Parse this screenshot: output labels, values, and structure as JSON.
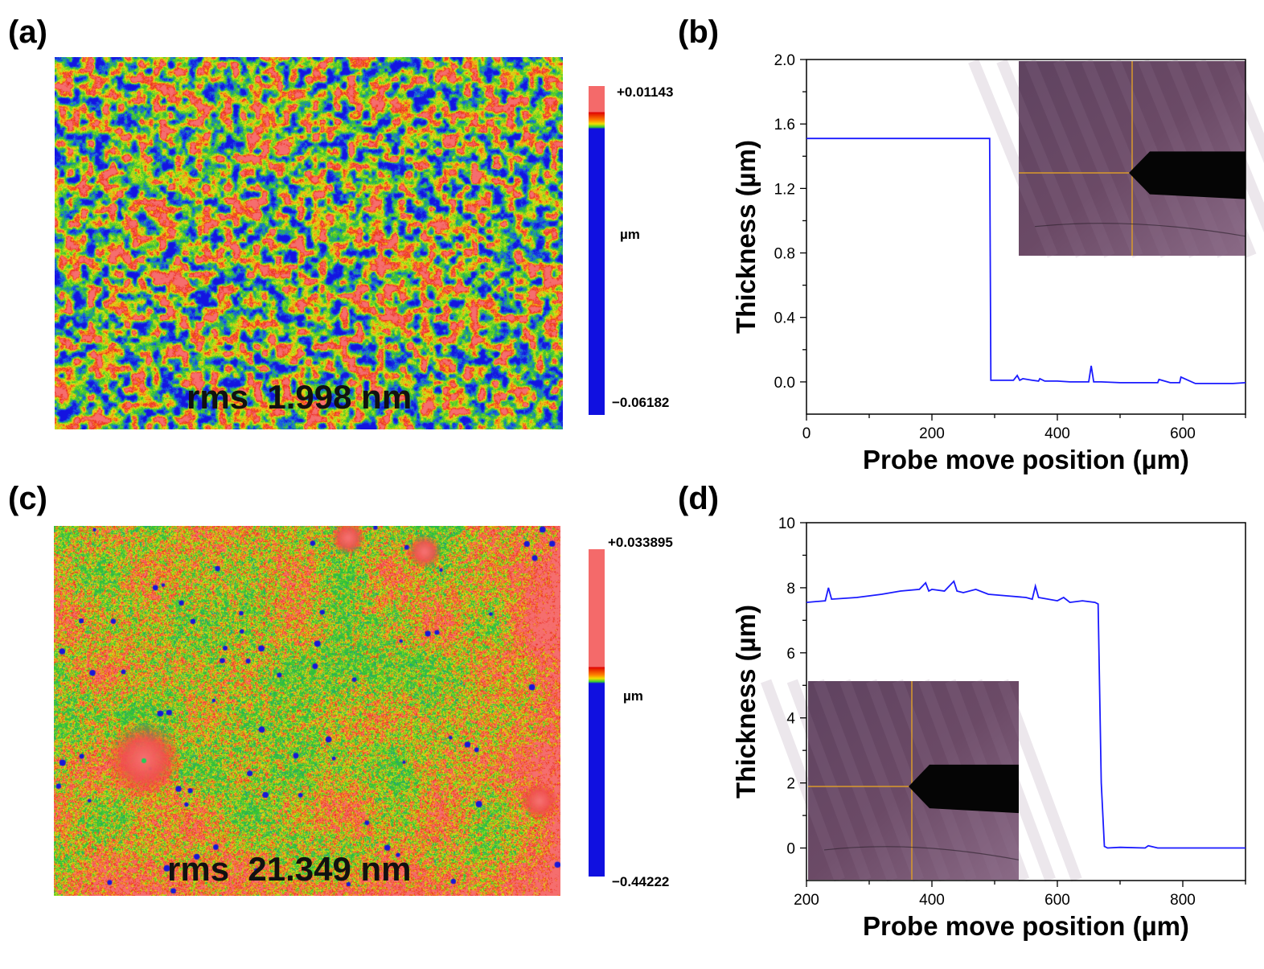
{
  "panels": {
    "a": {
      "label": "(a)",
      "rms": "rms  1.998 nm",
      "colorbar": {
        "max": "+0.01143",
        "unit": "µm",
        "min": "−0.06182"
      },
      "style": "dense-speckle"
    },
    "b": {
      "label": "(b)"
    },
    "c": {
      "label": "(c)",
      "rms": "rms  21.349 nm",
      "colorbar": {
        "max": "+0.033895",
        "unit": "µm",
        "min": "−0.44222"
      },
      "style": "sparse-pits"
    },
    "d": {
      "label": "(d)"
    }
  },
  "colors": {
    "line": "#1a1aff",
    "cb_red": "#f46a6a",
    "cb_blue": "#1010e0",
    "inset": "#6b4a66"
  },
  "chart_data": [
    {
      "id": "b",
      "type": "line",
      "xlabel": "Probe move position (µm)",
      "ylabel": "Thickness (µm)",
      "xlim": [
        0,
        700
      ],
      "ylim": [
        -0.2,
        2.0
      ],
      "xticks": [
        "0",
        "200",
        "400",
        "600"
      ],
      "yticks": [
        "0.0",
        "0.4",
        "0.8",
        "1.2",
        "1.6",
        "2.0"
      ],
      "inset": "top-right",
      "series": [
        {
          "x": [
            0,
            150,
            290,
            292,
            294,
            300,
            330,
            336,
            340,
            345,
            360,
            370,
            372,
            380,
            400,
            420,
            450,
            454,
            458,
            470,
            500,
            540,
            560,
            562,
            580,
            595,
            597,
            620,
            650,
            680,
            700
          ],
          "y": [
            1.51,
            1.51,
            1.51,
            1.51,
            0.01,
            0.01,
            0.01,
            0.04,
            0.01,
            0.02,
            0.01,
            0.005,
            0.02,
            0.005,
            0.005,
            0.0,
            0.0,
            0.1,
            0.0,
            0.0,
            -0.005,
            -0.005,
            -0.005,
            0.015,
            -0.005,
            -0.005,
            0.03,
            -0.01,
            -0.01,
            -0.01,
            -0.005
          ]
        }
      ]
    },
    {
      "id": "d",
      "type": "line",
      "xlabel": "Probe move position (µm)",
      "ylabel": "Thickness (µm)",
      "xlim": [
        200,
        900
      ],
      "ylim": [
        -1,
        10
      ],
      "xticks": [
        "200",
        "400",
        "600",
        "800"
      ],
      "yticks": [
        "0",
        "2",
        "4",
        "6",
        "8",
        "10"
      ],
      "inset": "bottom-left",
      "series": [
        {
          "x": [
            200,
            230,
            235,
            240,
            280,
            300,
            320,
            350,
            380,
            390,
            395,
            400,
            420,
            435,
            440,
            450,
            470,
            490,
            520,
            550,
            560,
            565,
            570,
            600,
            610,
            620,
            640,
            660,
            665,
            670,
            675,
            680,
            700,
            740,
            745,
            760,
            800,
            850,
            900
          ],
          "y": [
            7.55,
            7.6,
            8.0,
            7.65,
            7.7,
            7.75,
            7.8,
            7.9,
            7.95,
            8.15,
            7.9,
            7.95,
            7.9,
            8.2,
            7.9,
            7.85,
            7.95,
            7.8,
            7.75,
            7.7,
            7.65,
            8.05,
            7.7,
            7.6,
            7.7,
            7.55,
            7.6,
            7.55,
            7.5,
            2.0,
            0.05,
            0.0,
            0.02,
            0.0,
            0.07,
            0.0,
            0.0,
            0.0,
            0.0
          ]
        }
      ]
    }
  ]
}
